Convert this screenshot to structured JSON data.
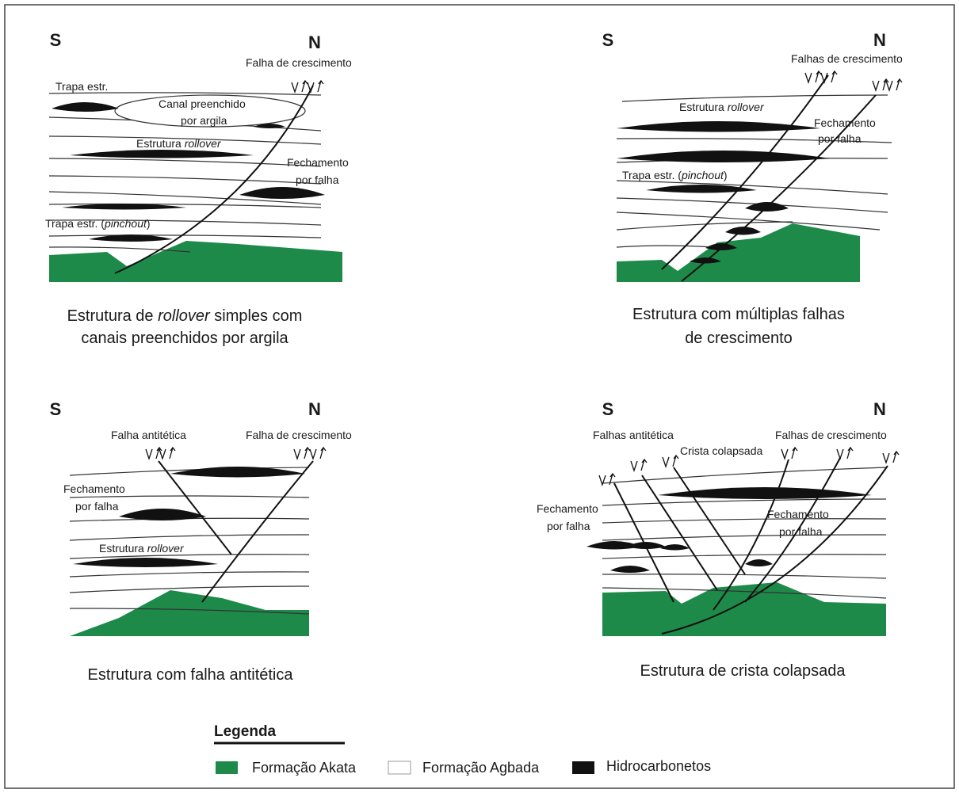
{
  "panels": [
    {
      "south": "S",
      "north": "N",
      "notes": [
        [
          "Falha de crescimento"
        ],
        [
          "Trapa estr."
        ],
        [
          "Canal preenchido"
        ],
        [
          "por argila"
        ],
        [
          "Estrutura ",
          "rollover"
        ],
        [
          "Fechamento"
        ],
        [
          "por falha"
        ],
        [
          "Trapa estr. (",
          "pinchout",
          ")"
        ]
      ],
      "caption": [
        [
          "Estrutura de ",
          "rollover",
          " simples com"
        ],
        [
          "canais preenchidos por argila"
        ]
      ]
    },
    {
      "south": "S",
      "north": "N",
      "notes": [
        [
          "Falhas de crescimento"
        ],
        [
          "Estrutura ",
          "rollover"
        ],
        [
          "Fechamento"
        ],
        [
          "por falha"
        ],
        [
          "Trapa estr. (",
          "pinchout",
          ")"
        ]
      ],
      "caption": [
        [
          "Estrutura com múltiplas falhas"
        ],
        [
          "de crescimento"
        ]
      ]
    },
    {
      "south": "S",
      "north": "N",
      "notes": [
        [
          "Falha antitética"
        ],
        [
          "Falha de crescimento"
        ],
        [
          "Fechamento"
        ],
        [
          "por falha"
        ],
        [
          "Estrutura ",
          "rollover"
        ]
      ],
      "caption": [
        [
          "Estrutura com falha antitética"
        ]
      ]
    },
    {
      "south": "S",
      "north": "N",
      "notes": [
        [
          "Falhas antitética"
        ],
        [
          "Crista colapsada"
        ],
        [
          "Falhas de crescimento"
        ],
        [
          "Fechamento"
        ],
        [
          "por falha"
        ],
        [
          "Fechamento"
        ],
        [
          "por falha"
        ]
      ],
      "caption": [
        [
          "Estrutura de crista colapsada"
        ]
      ]
    }
  ],
  "legend": {
    "title": "Legenda",
    "items": [
      "Formação Akata",
      "Formação Agbada",
      "Hidrocarbonetos"
    ]
  }
}
